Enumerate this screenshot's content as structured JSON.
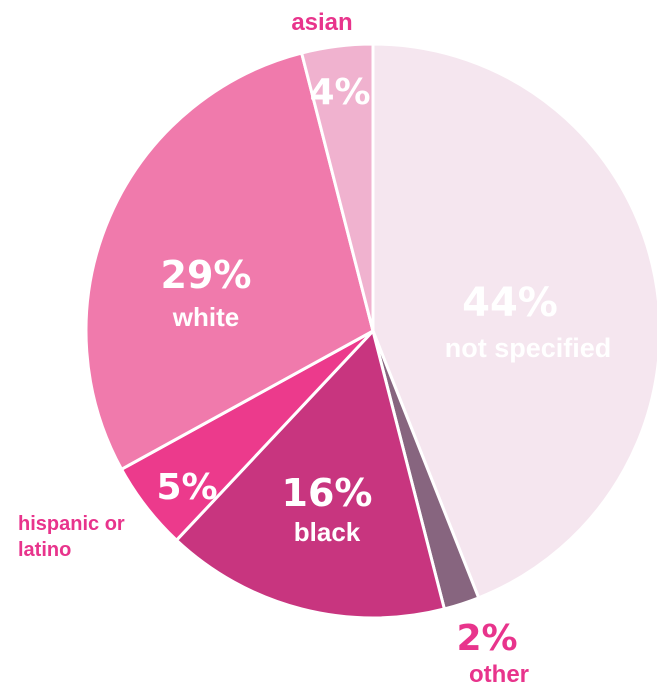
{
  "chart_data": {
    "type": "pie",
    "slices": [
      {
        "label": "not specified",
        "value": 44,
        "value_label": "44%",
        "color": "#f5e6ef"
      },
      {
        "label": "other",
        "value": 2,
        "value_label": "2%",
        "color": "#87657f"
      },
      {
        "label": "black",
        "value": 16,
        "value_label": "16%",
        "color": "#c8357f"
      },
      {
        "label": "hispanic or latino",
        "value": 5,
        "value_label": "5%",
        "color": "#ec3a8c"
      },
      {
        "label": "white",
        "value": 29,
        "value_label": "29%",
        "color": "#f07aac"
      },
      {
        "label": "asian",
        "value": 4,
        "value_label": "4%",
        "color": "#f0b2cf"
      }
    ],
    "label_color_outside": "#e8348c",
    "label_color_inside": "#ffffff"
  }
}
